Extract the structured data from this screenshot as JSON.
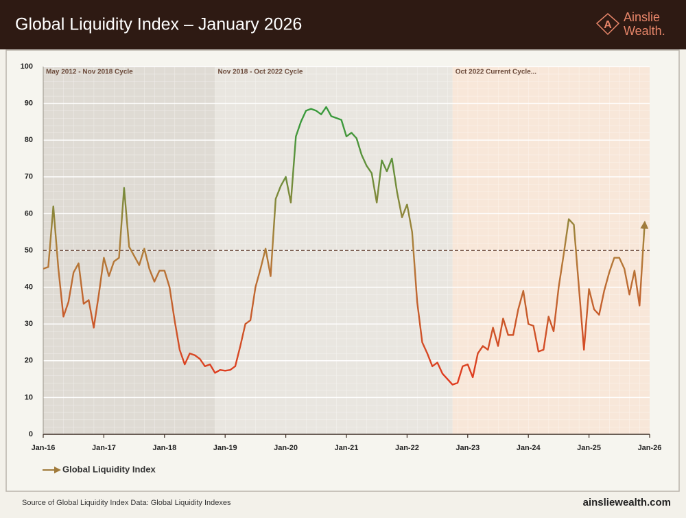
{
  "chart_data": {
    "type": "line",
    "title": "Global Liquidity Index – January 2026",
    "x": [
      "2016-01",
      "2016-02",
      "2016-03",
      "2016-04",
      "2016-05",
      "2016-06",
      "2016-07",
      "2016-08",
      "2016-09",
      "2016-10",
      "2016-11",
      "2016-12",
      "2017-01",
      "2017-02",
      "2017-03",
      "2017-04",
      "2017-05",
      "2017-06",
      "2017-07",
      "2017-08",
      "2017-09",
      "2017-10",
      "2017-11",
      "2017-12",
      "2018-01",
      "2018-02",
      "2018-03",
      "2018-04",
      "2018-05",
      "2018-06",
      "2018-07",
      "2018-08",
      "2018-09",
      "2018-10",
      "2018-11",
      "2018-12",
      "2019-01",
      "2019-02",
      "2019-03",
      "2019-04",
      "2019-05",
      "2019-06",
      "2019-07",
      "2019-08",
      "2019-09",
      "2019-10",
      "2019-11",
      "2019-12",
      "2020-01",
      "2020-02",
      "2020-03",
      "2020-04",
      "2020-05",
      "2020-06",
      "2020-07",
      "2020-08",
      "2020-09",
      "2020-10",
      "2020-11",
      "2020-12",
      "2021-01",
      "2021-02",
      "2021-03",
      "2021-04",
      "2021-05",
      "2021-06",
      "2021-07",
      "2021-08",
      "2021-09",
      "2021-10",
      "2021-11",
      "2021-12",
      "2022-01",
      "2022-02",
      "2022-03",
      "2022-04",
      "2022-05",
      "2022-06",
      "2022-07",
      "2022-08",
      "2022-09",
      "2022-10",
      "2022-11",
      "2022-12",
      "2023-01",
      "2023-02",
      "2023-03",
      "2023-04",
      "2023-05",
      "2023-06",
      "2023-07",
      "2023-08",
      "2023-09",
      "2023-10",
      "2023-11",
      "2023-12",
      "2024-01",
      "2024-02",
      "2024-03",
      "2024-04",
      "2024-05",
      "2024-06",
      "2024-07",
      "2024-08",
      "2024-09",
      "2024-10",
      "2024-11",
      "2024-12",
      "2025-01",
      "2025-02",
      "2025-03",
      "2025-04",
      "2025-05",
      "2025-06",
      "2025-07",
      "2025-08",
      "2025-09",
      "2025-10",
      "2025-11",
      "2025-12"
    ],
    "series": [
      {
        "name": "Global Liquidity Index",
        "color": "#a07a3a",
        "values": [
          45,
          45.5,
          62,
          45,
          32,
          36,
          44,
          46.5,
          35.5,
          36.5,
          29,
          38,
          48,
          43,
          47,
          48,
          67,
          51,
          48.5,
          46,
          50.5,
          45,
          41.5,
          44.5,
          44.5,
          40,
          31,
          23,
          19,
          22,
          21.5,
          20.5,
          18.5,
          19,
          16.7,
          17.5,
          17.3,
          17.5,
          18.5,
          24,
          30,
          31,
          40,
          45,
          50.5,
          43,
          64,
          67.5,
          70,
          63,
          81,
          85,
          88,
          88.5,
          88,
          87,
          89,
          86.5,
          86,
          85.5,
          81,
          82,
          80.5,
          76,
          73,
          71,
          63,
          74.5,
          71.5,
          75,
          66,
          59,
          62.5,
          55,
          36,
          25,
          22,
          18.5,
          19.5,
          16.5,
          15,
          13.5,
          14,
          18.5,
          19,
          15.5,
          22,
          24,
          23,
          29,
          24,
          31.5,
          27,
          27,
          34,
          39,
          30,
          29.5,
          22.5,
          23,
          32,
          28,
          40,
          49,
          58.5,
          57,
          40,
          23,
          39.5,
          34,
          32.5,
          39,
          44,
          48,
          48,
          45,
          38,
          44.5,
          35,
          57
        ]
      }
    ],
    "color_stops": [
      {
        "value": 15,
        "color": "#e03a1e"
      },
      {
        "value": 50,
        "color": "#b07e3a"
      },
      {
        "value": 85,
        "color": "#3a9a3c"
      }
    ],
    "xlim": [
      "2016-01",
      "2026-01"
    ],
    "xticks": [
      {
        "value": "2016-01",
        "label": "Jan-16"
      },
      {
        "value": "2017-01",
        "label": "Jan-17"
      },
      {
        "value": "2018-01",
        "label": "Jan-18"
      },
      {
        "value": "2019-01",
        "label": "Jan-19"
      },
      {
        "value": "2020-01",
        "label": "Jan-20"
      },
      {
        "value": "2021-01",
        "label": "Jan-21"
      },
      {
        "value": "2022-01",
        "label": "Jan-22"
      },
      {
        "value": "2023-01",
        "label": "Jan-23"
      },
      {
        "value": "2024-01",
        "label": "Jan-24"
      },
      {
        "value": "2025-01",
        "label": "Jan-25"
      },
      {
        "value": "2026-01",
        "label": "Jan-26"
      }
    ],
    "ylim": [
      0,
      100
    ],
    "yticks": [
      0,
      10,
      20,
      30,
      40,
      50,
      60,
      70,
      80,
      90,
      100
    ],
    "reference_line": 50,
    "cycles": [
      {
        "label": "May 2012 - Nov 2018 Cycle",
        "start": "2012-05",
        "end": "2018-11",
        "color": "#dfdbd4"
      },
      {
        "label": "Nov 2018 - Oct 2022 Cycle",
        "start": "2018-11",
        "end": "2022-10",
        "color": "#e9e6e0"
      },
      {
        "label": "Oct 2022 Current Cycle...",
        "start": "2022-10",
        "color": "#f8e7d9"
      }
    ]
  },
  "brand": {
    "name": "Ainslie",
    "suffix": "Wealth."
  },
  "footer": {
    "source": "Source of Global Liquidity Index Data: Global Liquidity Indexes",
    "website": "ainsliewealth.com"
  }
}
